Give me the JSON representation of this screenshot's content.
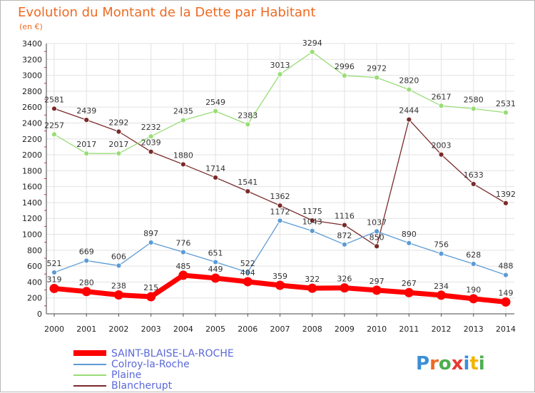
{
  "chart_data": {
    "type": "line",
    "title": "Evolution du Montant de la Dette par Habitant",
    "subtitle": "(en €)",
    "x": [
      "2000",
      "2001",
      "2002",
      "2003",
      "2004",
      "2005",
      "2006",
      "2007",
      "2008",
      "2009",
      "2010",
      "2011",
      "2012",
      "2013",
      "2014"
    ],
    "y_ticks": [
      "0",
      "200",
      "400",
      "600",
      "800",
      "1000",
      "1200",
      "1400",
      "1600",
      "1800",
      "2000",
      "2200",
      "2400",
      "2600",
      "2800",
      "3000",
      "3200",
      "3400"
    ],
    "ylim": [
      0,
      3400
    ],
    "grid": true,
    "legend_position": "bottom-left",
    "series": [
      {
        "name": "SAINT-BLAISE-LA-ROCHE",
        "color": "#ff0000",
        "values": [
          319,
          280,
          238,
          215,
          485,
          449,
          404,
          359,
          322,
          326,
          297,
          267,
          234,
          190,
          149
        ],
        "labels": [
          "319",
          "280",
          "238",
          "215",
          "485",
          "449",
          "404",
          "359",
          "322",
          "326",
          "297",
          "267",
          "234",
          "190",
          "149"
        ]
      },
      {
        "name": "Colroy-la-Roche",
        "color": "#5b9bd5",
        "values": [
          521,
          669,
          606,
          897,
          776,
          651,
          522,
          1172,
          1043,
          872,
          1037,
          890,
          756,
          628,
          488
        ],
        "labels": [
          "521",
          "669",
          "606",
          "897",
          "776",
          "651",
          "522",
          "1172",
          "1043",
          "872",
          "1037",
          "890",
          "756",
          "628",
          "488"
        ]
      },
      {
        "name": "Plaine",
        "color": "#99dd77",
        "values": [
          2257,
          2017,
          2017,
          2232,
          2435,
          2549,
          2383,
          3013,
          3294,
          2996,
          2972,
          2820,
          2617,
          2580,
          2531
        ],
        "labels": [
          "2257",
          "2017",
          "2017",
          "2232",
          "2435",
          "2549",
          "2383",
          "3013",
          "3294",
          "2996",
          "2972",
          "2820",
          "2617",
          "2580",
          "2531"
        ]
      },
      {
        "name": "Blancherupt",
        "color": "#7a2a2a",
        "values": [
          2581,
          2439,
          2292,
          2039,
          1880,
          1714,
          1541,
          1362,
          1175,
          1116,
          850,
          2444,
          2003,
          1633,
          1392
        ],
        "labels": [
          "2581",
          "2439",
          "2292",
          "2039",
          "1880",
          "1714",
          "1541",
          "1362",
          "1175",
          "1116",
          "850",
          "2444",
          "2003",
          "1633",
          "1392"
        ]
      }
    ]
  },
  "logo": {
    "text": "Proxiti",
    "letter_colors": [
      "#3a8fd6",
      "#ee6a23",
      "#4caf50",
      "#e53935",
      "#3a8fd6",
      "#f4b400",
      "#4caf50"
    ]
  }
}
